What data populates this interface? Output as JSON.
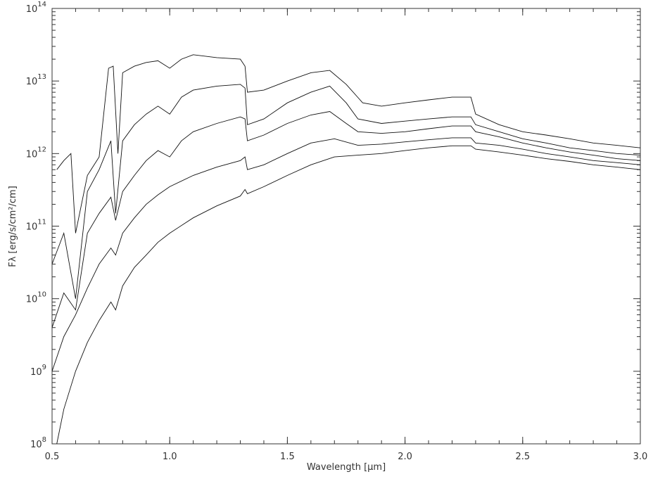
{
  "chart_data": {
    "type": "line",
    "xlabel": "Wavelength [μm]",
    "ylabel": "Fλ [erg/s/cm²/cm]",
    "xlim": [
      0.5,
      3.0
    ],
    "ylim": [
      100000000.0,
      100000000000000.0
    ],
    "y_scale": "log",
    "grid": false,
    "x_ticks": [
      "0.5",
      "1.0",
      "1.5",
      "2.0",
      "2.5",
      "3.0"
    ],
    "y_ticks": [
      {
        "base": "10",
        "exp": "8"
      },
      {
        "base": "10",
        "exp": "9"
      },
      {
        "base": "10",
        "exp": "10"
      },
      {
        "base": "10",
        "exp": "11"
      },
      {
        "base": "10",
        "exp": "12"
      },
      {
        "base": "10",
        "exp": "13"
      },
      {
        "base": "10",
        "exp": "14"
      }
    ],
    "series": [
      {
        "x": [
          0.52,
          0.55,
          0.58,
          0.6,
          0.65,
          0.7,
          0.74,
          0.76,
          0.78,
          0.8,
          0.85,
          0.9,
          0.95,
          1.0,
          1.05,
          1.1,
          1.2,
          1.3,
          1.32,
          1.33,
          1.4,
          1.5,
          1.6,
          1.68,
          1.75,
          1.82,
          1.9,
          2.0,
          2.1,
          2.2,
          2.28,
          2.3,
          2.4,
          2.5,
          2.6,
          2.7,
          2.8,
          2.9,
          3.0
        ],
        "y": [
          600000000000.0,
          800000000000.0,
          1000000000000.0,
          80000000000.0,
          500000000000.0,
          900000000000.0,
          15000000000000.0,
          16000000000000.0,
          1000000000000.0,
          13000000000000.0,
          16000000000000.0,
          18000000000000.0,
          19000000000000.0,
          15000000000000.0,
          20000000000000.0,
          23000000000000.0,
          21000000000000.0,
          20000000000000.0,
          16000000000000.0,
          7000000000000.0,
          7500000000000.0,
          10000000000000.0,
          13000000000000.0,
          14000000000000.0,
          9000000000000.0,
          5000000000000.0,
          4500000000000.0,
          5000000000000.0,
          5500000000000.0,
          6000000000000.0,
          6000000000000.0,
          3500000000000.0,
          2500000000000.0,
          2000000000000.0,
          1800000000000.0,
          1600000000000.0,
          1400000000000.0,
          1300000000000.0,
          1200000000000.0
        ]
      },
      {
        "x": [
          0.5,
          0.55,
          0.6,
          0.65,
          0.7,
          0.75,
          0.77,
          0.8,
          0.85,
          0.9,
          0.95,
          1.0,
          1.05,
          1.1,
          1.2,
          1.3,
          1.32,
          1.33,
          1.4,
          1.5,
          1.6,
          1.68,
          1.75,
          1.8,
          1.9,
          2.0,
          2.1,
          2.2,
          2.28,
          2.3,
          2.4,
          2.5,
          2.6,
          2.7,
          2.8,
          2.9,
          3.0
        ],
        "y": [
          30000000000.0,
          80000000000.0,
          10000000000.0,
          300000000000.0,
          600000000000.0,
          1500000000000.0,
          150000000000.0,
          1500000000000.0,
          2500000000000.0,
          3500000000000.0,
          4500000000000.0,
          3500000000000.0,
          6000000000000.0,
          7500000000000.0,
          8500000000000.0,
          9000000000000.0,
          8000000000000.0,
          2500000000000.0,
          3000000000000.0,
          5000000000000.0,
          7000000000000.0,
          8500000000000.0,
          5000000000000.0,
          3000000000000.0,
          2600000000000.0,
          2800000000000.0,
          3000000000000.0,
          3200000000000.0,
          3200000000000.0,
          2500000000000.0,
          2000000000000.0,
          1600000000000.0,
          1400000000000.0,
          1200000000000.0,
          1100000000000.0,
          1000000000000.0,
          950000000000.0
        ]
      },
      {
        "x": [
          0.5,
          0.55,
          0.6,
          0.65,
          0.7,
          0.75,
          0.77,
          0.8,
          0.85,
          0.9,
          0.95,
          1.0,
          1.05,
          1.1,
          1.2,
          1.3,
          1.32,
          1.33,
          1.4,
          1.5,
          1.6,
          1.68,
          1.75,
          1.8,
          1.9,
          2.0,
          2.1,
          2.2,
          2.28,
          2.3,
          2.4,
          2.5,
          2.6,
          2.7,
          2.8,
          2.9,
          3.0
        ],
        "y": [
          4000000000.0,
          12000000000.0,
          7000000000.0,
          80000000000.0,
          150000000000.0,
          250000000000.0,
          120000000000.0,
          300000000000.0,
          500000000000.0,
          800000000000.0,
          1100000000000.0,
          900000000000.0,
          1500000000000.0,
          2000000000000.0,
          2600000000000.0,
          3200000000000.0,
          3000000000000.0,
          1500000000000.0,
          1800000000000.0,
          2600000000000.0,
          3400000000000.0,
          3800000000000.0,
          2600000000000.0,
          2000000000000.0,
          1900000000000.0,
          2000000000000.0,
          2200000000000.0,
          2400000000000.0,
          2400000000000.0,
          2000000000000.0,
          1700000000000.0,
          1400000000000.0,
          1200000000000.0,
          1050000000000.0,
          950000000000.0,
          850000000000.0,
          800000000000.0
        ]
      },
      {
        "x": [
          0.5,
          0.55,
          0.6,
          0.65,
          0.7,
          0.75,
          0.77,
          0.8,
          0.85,
          0.9,
          0.95,
          1.0,
          1.1,
          1.2,
          1.3,
          1.32,
          1.33,
          1.4,
          1.5,
          1.6,
          1.7,
          1.8,
          1.9,
          2.0,
          2.1,
          2.2,
          2.28,
          2.3,
          2.4,
          2.5,
          2.6,
          2.7,
          2.8,
          2.9,
          3.0
        ],
        "y": [
          1000000000.0,
          3000000000.0,
          6000000000.0,
          14000000000.0,
          30000000000.0,
          50000000000.0,
          40000000000.0,
          80000000000.0,
          130000000000.0,
          200000000000.0,
          270000000000.0,
          350000000000.0,
          500000000000.0,
          650000000000.0,
          800000000000.0,
          900000000000.0,
          600000000000.0,
          700000000000.0,
          1000000000000.0,
          1400000000000.0,
          1600000000000.0,
          1300000000000.0,
          1350000000000.0,
          1450000000000.0,
          1550000000000.0,
          1650000000000.0,
          1650000000000.0,
          1400000000000.0,
          1300000000000.0,
          1150000000000.0,
          1000000000000.0,
          900000000000.0,
          800000000000.0,
          750000000000.0,
          700000000000.0
        ]
      },
      {
        "x": [
          0.52,
          0.55,
          0.6,
          0.65,
          0.7,
          0.75,
          0.77,
          0.8,
          0.85,
          0.9,
          0.95,
          1.0,
          1.1,
          1.2,
          1.3,
          1.32,
          1.33,
          1.4,
          1.5,
          1.6,
          1.7,
          1.8,
          1.9,
          2.0,
          2.1,
          2.2,
          2.28,
          2.3,
          2.4,
          2.5,
          2.6,
          2.7,
          2.8,
          2.9,
          3.0
        ],
        "y": [
          100000000.0,
          300000000.0,
          1000000000.0,
          2500000000.0,
          5000000000.0,
          9000000000.0,
          7000000000.0,
          15000000000.0,
          27000000000.0,
          40000000000.0,
          60000000000.0,
          80000000000.0,
          130000000000.0,
          190000000000.0,
          260000000000.0,
          320000000000.0,
          280000000000.0,
          350000000000.0,
          500000000000.0,
          700000000000.0,
          900000000000.0,
          950000000000.0,
          1000000000000.0,
          1100000000000.0,
          1200000000000.0,
          1280000000000.0,
          1280000000000.0,
          1150000000000.0,
          1050000000000.0,
          950000000000.0,
          850000000000.0,
          780000000000.0,
          700000000000.0,
          650000000000.0,
          600000000000.0
        ]
      }
    ]
  }
}
